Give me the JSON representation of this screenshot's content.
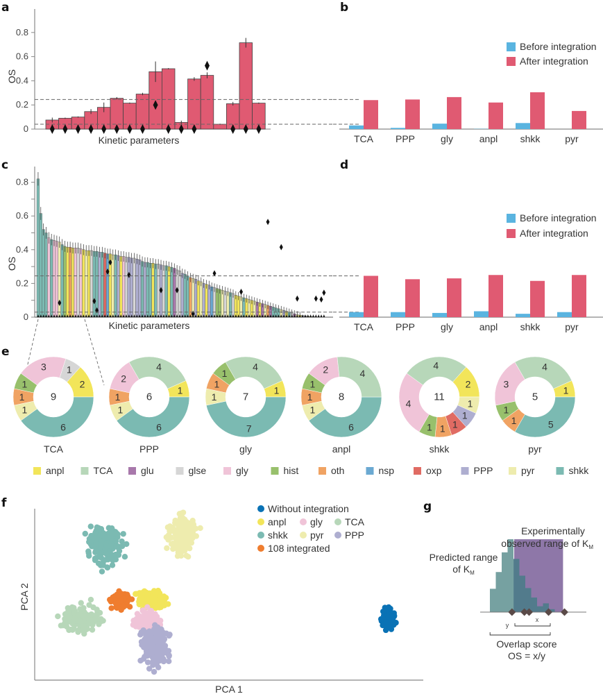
{
  "panel_labels": [
    "a",
    "b",
    "c",
    "d",
    "e",
    "f",
    "g"
  ],
  "colors": {
    "before": "#5ab4e0",
    "after": "#e05a72",
    "bar_a": "#e05a72",
    "dashed": "#666666",
    "without_integration": "#0a72b5",
    "integrated_108": "#ef7d2f",
    "g_predicted": "#6f9c9c",
    "g_observed": "#8e77a8",
    "g_overlap": "#4f7b8a",
    "g_marker": "#5a4a48"
  },
  "categories": {
    "anpl": "#f2e55a",
    "TCA": "#b7d7b9",
    "glu": "#a878ab",
    "glse": "#d6d6d6",
    "gly": "#f0c4d8",
    "hist": "#98c06c",
    "oth": "#f0a363",
    "nsp": "#6ba9d2",
    "oxp": "#e06b63",
    "PPP": "#aeaed0",
    "pyr": "#eeecae",
    "shkk": "#7bbab2"
  },
  "chart_data": [
    {
      "id": "a",
      "type": "bar",
      "title": "",
      "xlabel": "Kinetic parameters",
      "ylabel": "OS",
      "ylim": [
        0,
        1.0
      ],
      "yticks": [
        0,
        0.2,
        0.4,
        0.6,
        0.8
      ],
      "ytick_labels": [
        "0",
        "0.2",
        "0.4",
        "0.6",
        "0.8"
      ],
      "values": [
        0.075,
        0.09,
        0.1,
        0.145,
        0.18,
        0.255,
        0.215,
        0.29,
        0.475,
        0.5,
        0.055,
        0.415,
        0.445,
        0.04,
        0.21,
        0.715,
        0.215
      ],
      "errors": [
        0.02,
        0.005,
        0.005,
        0.02,
        0.04,
        0.01,
        0.005,
        0.01,
        0.085,
        0.005,
        0.015,
        0.015,
        0.025,
        0.005,
        0.015,
        0.04,
        0.005
      ],
      "markers": [
        0,
        0,
        0,
        0,
        0,
        0,
        0,
        0,
        0.2,
        0,
        0,
        0,
        0.525,
        null,
        0,
        0,
        0
      ],
      "hlines": [
        0.245,
        0.04
      ],
      "grid": false
    },
    {
      "id": "b",
      "type": "bar",
      "title": "",
      "xlabel": "",
      "ylabel": "",
      "ylim": [
        0,
        1.0
      ],
      "categories": [
        "TCA",
        "PPP",
        "gly",
        "anpl",
        "shkk",
        "pyr"
      ],
      "series": [
        {
          "name": "Before integration",
          "values": [
            0.03,
            0.01,
            0.045,
            0.002,
            0.05,
            0.0
          ]
        },
        {
          "name": "After integration",
          "values": [
            0.24,
            0.245,
            0.265,
            0.22,
            0.305,
            0.15
          ]
        }
      ],
      "hlines": [
        0.245,
        0.04
      ],
      "legend": "top-right",
      "grid": false
    },
    {
      "id": "c",
      "type": "bar",
      "title": "",
      "xlabel": "Kinetic parameters",
      "ylabel": "OS",
      "ylim": [
        0,
        0.88
      ],
      "yticks": [
        0,
        0.2,
        0.4,
        0.6,
        0.8
      ],
      "ytick_labels": [
        "0",
        "0.2",
        "0.4",
        "0.6",
        "0.8"
      ],
      "n_bars": 108,
      "values_description": "108 bars sorted in descending order; first bars 0.82, 0.62, 0.52, 0.50, then a slow decline from ~0.47 to ~0.33 over the middle and a steeper decline toward ~0.0 at the right end",
      "values": [
        0.82,
        0.615,
        0.52,
        0.5,
        0.47,
        0.46,
        0.455,
        0.45,
        0.445,
        0.43,
        0.42,
        0.415,
        0.415,
        0.41,
        0.41,
        0.41,
        0.405,
        0.4,
        0.395,
        0.395,
        0.395,
        0.39,
        0.39,
        0.385,
        0.385,
        0.38,
        0.375,
        0.375,
        0.37,
        0.37,
        0.365,
        0.36,
        0.36,
        0.355,
        0.355,
        0.35,
        0.35,
        0.345,
        0.34,
        0.33,
        0.325,
        0.325,
        0.32,
        0.32,
        0.315,
        0.315,
        0.31,
        0.305,
        0.305,
        0.3,
        0.295,
        0.29,
        0.28,
        0.275,
        0.26,
        0.255,
        0.245,
        0.235,
        0.23,
        0.225,
        0.215,
        0.21,
        0.2,
        0.195,
        0.19,
        0.18,
        0.175,
        0.17,
        0.165,
        0.16,
        0.155,
        0.15,
        0.145,
        0.14,
        0.13,
        0.125,
        0.12,
        0.115,
        0.11,
        0.105,
        0.1,
        0.095,
        0.09,
        0.085,
        0.08,
        0.075,
        0.07,
        0.065,
        0.06,
        0.055,
        0.05,
        0.045,
        0.04,
        0.035,
        0.03,
        0.025,
        0.02,
        0.015,
        0.012,
        0.01,
        0.008,
        0.006,
        0.004,
        0.003,
        0.002,
        0.001,
        0.0,
        0.0
      ],
      "colors": [
        "shkk",
        "shkk",
        "shkk",
        "shkk",
        "gly",
        "shkk",
        "gly",
        "gly",
        "pyr",
        "shkk",
        "hist",
        "anpl",
        "oth",
        "anpl",
        "gly",
        "glse",
        "gly",
        "anpl",
        "pyr",
        "anpl",
        "glse",
        "shkk",
        "shkk",
        "PPP",
        "shkk",
        "oxp",
        "nsp",
        "anpl",
        "pyr",
        "shkk",
        "PPP",
        "anpl",
        "gly",
        "glse",
        "PPP",
        "PPP",
        "glse",
        "PPP",
        "PPP",
        "shkk",
        "PPP",
        "shkk",
        "shkk",
        "anpl",
        "shkk",
        "glse",
        "PPP",
        "glse",
        "shkk",
        "anpl",
        "shkk",
        "glu",
        "glse",
        "glse",
        "PPP",
        "shkk",
        "shkk",
        "oth",
        "pyr",
        "PPP",
        "anpl",
        "pyr",
        "PPP",
        "anpl",
        "PPP",
        "nsp",
        "glse",
        "hist",
        "hist",
        "pyr",
        "glse",
        "pyr",
        "shkk",
        "glse",
        "anpl",
        "anpl",
        "pyr",
        "shkk",
        "anpl",
        "pyr",
        "anpl",
        "pyr",
        "glu",
        "anpl",
        "glu",
        "pyr",
        "oth",
        "glu",
        "shkk",
        "shkk",
        "shkk",
        "pyr",
        "PPP",
        "anpl",
        "shkk",
        "glse",
        "glu",
        "pyr",
        "anpl",
        "glse",
        "PPP",
        "pyr",
        "anpl",
        "shkk",
        "glse",
        "pyr",
        "glu",
        "PPP"
      ],
      "markers_description": "diamond markers for experimental KM at various bars; several above bars (e.g. 0.57, 0.42, 0.15)",
      "markers": [
        [
          8,
          0.085
        ],
        [
          21,
          0.095
        ],
        [
          22,
          0.04
        ],
        [
          26,
          0.27
        ],
        [
          27,
          0.325
        ],
        [
          34,
          0.25
        ],
        [
          46,
          0.16
        ],
        [
          52,
          0.16
        ],
        [
          58,
          0.02
        ],
        [
          66,
          0.26
        ],
        [
          76,
          0.15
        ],
        [
          86,
          0.565
        ],
        [
          91,
          0.415
        ],
        [
          97,
          0.11
        ],
        [
          104,
          0.11
        ],
        [
          106,
          0.105
        ],
        [
          107,
          0.145
        ]
      ],
      "hlines": [
        0.245,
        0.03
      ],
      "grid": false
    },
    {
      "id": "d",
      "type": "bar",
      "title": "",
      "xlabel": "",
      "ylabel": "",
      "ylim": [
        0,
        0.88
      ],
      "categories": [
        "TCA",
        "PPP",
        "gly",
        "anpl",
        "shkk",
        "pyr"
      ],
      "series": [
        {
          "name": "Before integration",
          "values": [
            0.03,
            0.03,
            0.025,
            0.035,
            0.02,
            0.03
          ]
        },
        {
          "name": "After integration",
          "values": [
            0.245,
            0.225,
            0.23,
            0.25,
            0.215,
            0.25
          ]
        }
      ],
      "hlines": [
        0.245,
        0.03
      ],
      "legend": "top-right",
      "grid": false
    },
    {
      "id": "e",
      "type": "pie",
      "donuts": [
        {
          "label": "TCA",
          "total": "9",
          "slices": [
            {
              "cat": "anpl",
              "value": 2
            },
            {
              "cat": "shkk",
              "value": 6
            },
            {
              "cat": "pyr",
              "value": 1
            },
            {
              "cat": "oth",
              "value": 1
            },
            {
              "cat": "hist",
              "value": 1
            },
            {
              "cat": "gly",
              "value": 3
            },
            {
              "cat": "glse",
              "value": 1
            }
          ]
        },
        {
          "label": "PPP",
          "total": "6",
          "slices": [
            {
              "cat": "anpl",
              "value": 1
            },
            {
              "cat": "shkk",
              "value": 6
            },
            {
              "cat": "pyr",
              "value": 1
            },
            {
              "cat": "oth",
              "value": 1
            },
            {
              "cat": "gly",
              "value": 2
            },
            {
              "cat": "TCA",
              "value": 4
            }
          ]
        },
        {
          "label": "gly",
          "total": "7",
          "slices": [
            {
              "cat": "anpl",
              "value": 1
            },
            {
              "cat": "shkk",
              "value": 7
            },
            {
              "cat": "pyr",
              "value": 1
            },
            {
              "cat": "oth",
              "value": 1
            },
            {
              "cat": "hist",
              "value": 1
            },
            {
              "cat": "TCA",
              "value": 4
            }
          ]
        },
        {
          "label": "anpl",
          "total": "8",
          "slices": [
            {
              "cat": "shkk",
              "value": 6
            },
            {
              "cat": "pyr",
              "value": 1
            },
            {
              "cat": "oth",
              "value": 1
            },
            {
              "cat": "hist",
              "value": 1
            },
            {
              "cat": "gly",
              "value": 2
            },
            {
              "cat": "TCA",
              "value": 4
            }
          ]
        },
        {
          "label": "shkk",
          "total": "11",
          "slices": [
            {
              "cat": "anpl",
              "value": 2
            },
            {
              "cat": "pyr",
              "value": 1
            },
            {
              "cat": "PPP",
              "value": 1
            },
            {
              "cat": "oxp",
              "value": 1
            },
            {
              "cat": "oth",
              "value": 1
            },
            {
              "cat": "hist",
              "value": 1
            },
            {
              "cat": "gly",
              "value": 4
            },
            {
              "cat": "TCA",
              "value": 4
            }
          ]
        },
        {
          "label": "pyr",
          "total": "5",
          "slices": [
            {
              "cat": "anpl",
              "value": 1
            },
            {
              "cat": "shkk",
              "value": 5
            },
            {
              "cat": "oth",
              "value": 1
            },
            {
              "cat": "hist",
              "value": 1
            },
            {
              "cat": "gly",
              "value": 3
            },
            {
              "cat": "TCA",
              "value": 4
            }
          ]
        }
      ],
      "legend": [
        "anpl",
        "TCA",
        "glu",
        "glse",
        "gly",
        "hist",
        "oth",
        "nsp",
        "oxp",
        "PPP",
        "pyr",
        "shkk"
      ]
    },
    {
      "id": "f",
      "type": "scatter",
      "title": "",
      "xlabel": "PCA 1",
      "ylabel": "PCA 2",
      "legend_title": "",
      "legend": [
        {
          "name": "Without integration",
          "color_key": "without_integration"
        },
        {
          "name": "anpl",
          "color_key": "anpl"
        },
        {
          "name": "gly",
          "color_key": "gly"
        },
        {
          "name": "TCA",
          "color_key": "TCA"
        },
        {
          "name": "shkk",
          "color_key": "shkk"
        },
        {
          "name": "pyr",
          "color_key": "pyr"
        },
        {
          "name": "PPP",
          "color_key": "PPP"
        },
        {
          "name": "108 integrated",
          "color_key": "integrated_108"
        }
      ],
      "clusters": [
        {
          "name": "shkk",
          "center": [
            0.18,
            0.78
          ],
          "spread": [
            0.035,
            0.09
          ],
          "n": 160
        },
        {
          "name": "pyr",
          "center": [
            0.38,
            0.85
          ],
          "spread": [
            0.03,
            0.1
          ],
          "n": 160
        },
        {
          "name": "TCA",
          "center": [
            0.12,
            0.36
          ],
          "spread": [
            0.04,
            0.07
          ],
          "n": 150
        },
        {
          "name": "integrated_108",
          "center": [
            0.22,
            0.47
          ],
          "spread": [
            0.025,
            0.05
          ],
          "n": 60
        },
        {
          "name": "anpl",
          "center": [
            0.3,
            0.47
          ],
          "spread": [
            0.03,
            0.05
          ],
          "n": 110
        },
        {
          "name": "gly",
          "center": [
            0.29,
            0.34
          ],
          "spread": [
            0.03,
            0.06
          ],
          "n": 130
        },
        {
          "name": "PPP",
          "center": [
            0.31,
            0.2
          ],
          "spread": [
            0.03,
            0.1
          ],
          "n": 200
        },
        {
          "name": "Without integration",
          "center": [
            0.91,
            0.36
          ],
          "spread": [
            0.015,
            0.05
          ],
          "n": 110
        }
      ]
    },
    {
      "id": "g",
      "type": "bar",
      "title": "",
      "labels": {
        "observed_line1": "Experimentally",
        "observed_line2": "observed range of K",
        "observed_sub": "M",
        "predicted_line1": "Predicted range",
        "predicted_line2": "of K",
        "predicted_sub": "M",
        "x_label": "x",
        "y_label": "y",
        "os_line1": "Overlap score",
        "os_line2": "OS = x/y"
      },
      "histogram": [
        0.32,
        0.55,
        0.82,
        1.0,
        0.73,
        0.5,
        0.33,
        0.2,
        0.08,
        0.12,
        0.04
      ],
      "observed_range_bins": [
        4,
        10
      ],
      "markers_bins": [
        4.1,
        6.2,
        7.0,
        10.3,
        13.0
      ]
    }
  ]
}
